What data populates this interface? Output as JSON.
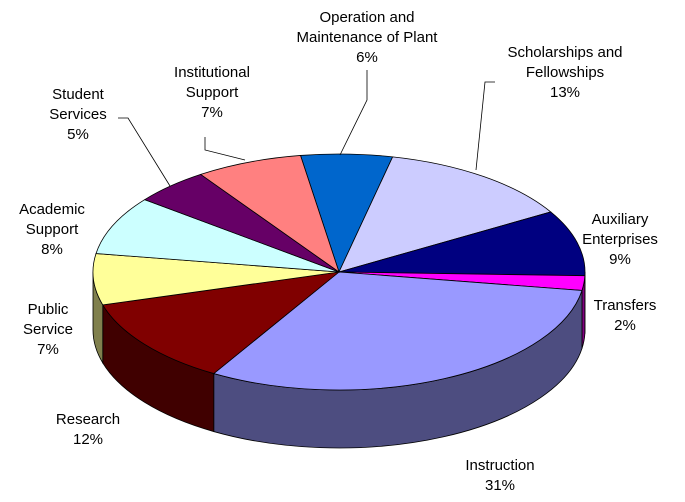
{
  "chart_data": {
    "type": "pie",
    "categories": [
      "Operation and\nMaintenance of Plant",
      "Scholarships and\nFellowships",
      "Auxiliary\nEnterprises",
      "Transfers",
      "Instruction",
      "Research",
      "Public\nService",
      "Academic\nSupport",
      "Student\nServices",
      "Institutional\nSupport"
    ],
    "values": [
      6,
      13,
      9,
      2,
      31,
      12,
      7,
      8,
      5,
      7
    ],
    "value_labels": [
      "6%",
      "13%",
      "9%",
      "2%",
      "31%",
      "12%",
      "7%",
      "8%",
      "5%",
      "7%"
    ],
    "colors": [
      "#0066cc",
      "#ccccff",
      "#000080",
      "#ff00ff",
      "#9999ff",
      "#800000",
      "#ffff99",
      "#ccffff",
      "#660066",
      "#ff8080"
    ]
  }
}
